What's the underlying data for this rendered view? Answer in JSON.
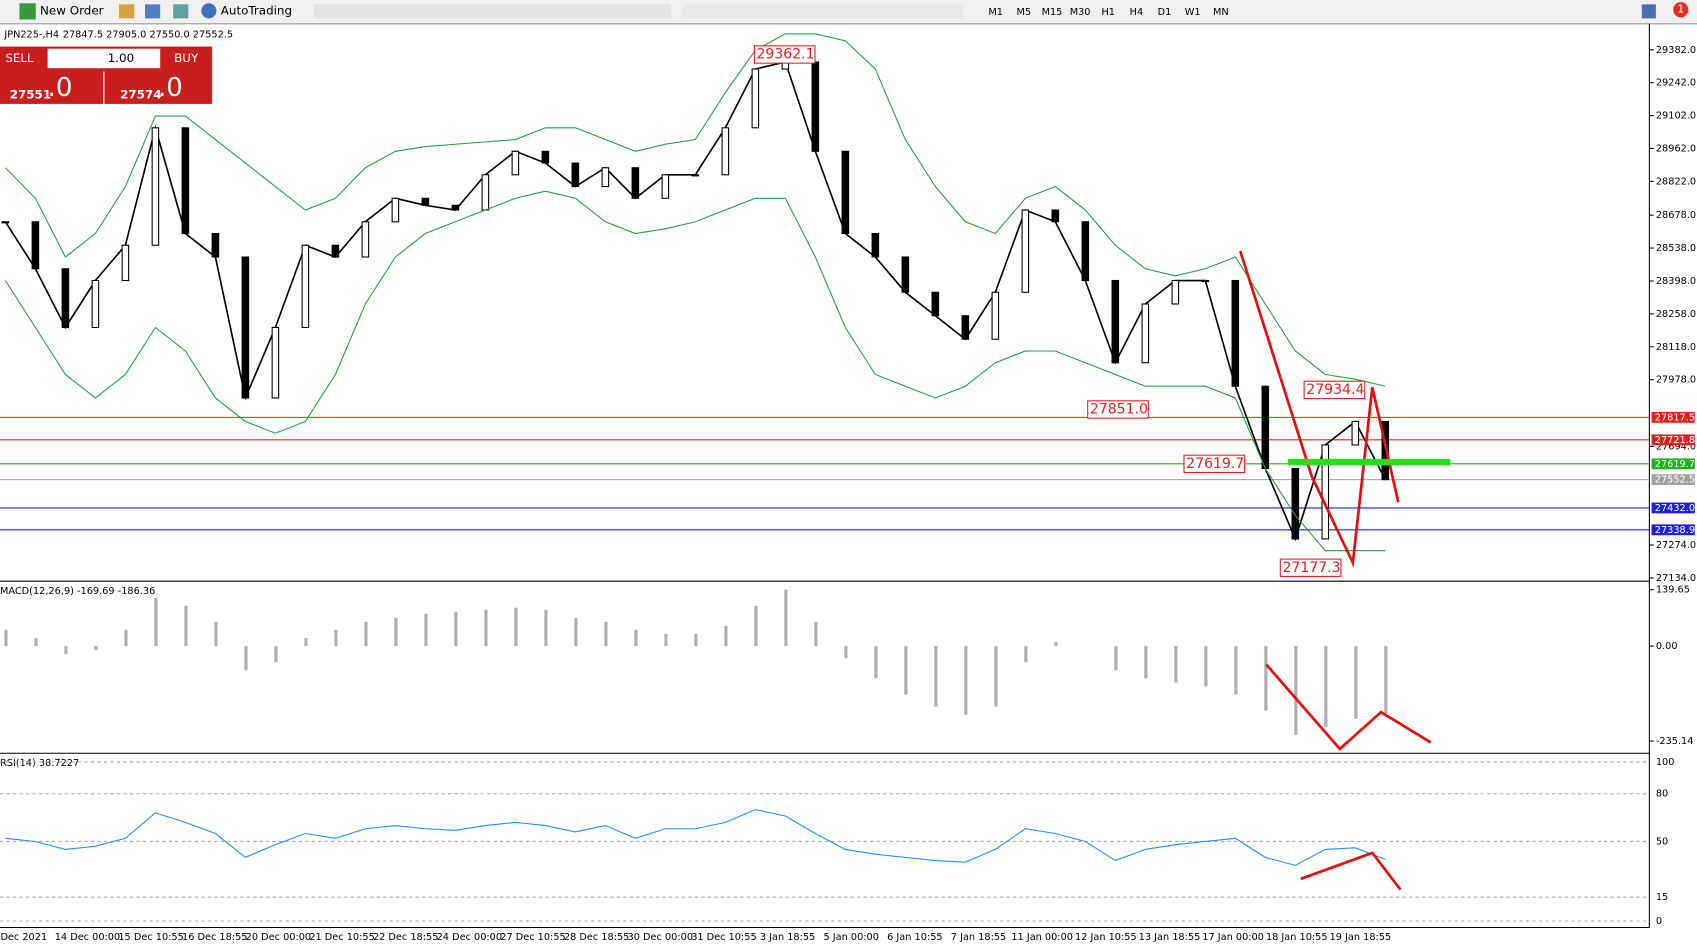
{
  "toolbar": {
    "new_order": "New Order",
    "autotrading": "AutoTrading",
    "timeframes": [
      "M1",
      "M5",
      "M15",
      "M30",
      "H1",
      "H4",
      "D1",
      "W1",
      "MN"
    ],
    "notifications": "1"
  },
  "trade_panel": {
    "sell": "SELL",
    "buy": "BUY",
    "lots": "1.00",
    "bid_main": "27551",
    "bid_small": ".0",
    "ask_main": "27574",
    "ask_small": ".0"
  },
  "chart_data": {
    "type": "candlestick-line",
    "title": "JPN225-,H4",
    "ohlc_header": "27847.5 27905.0 27550.0 27552.5",
    "ylim": [
      27134,
      29382
    ],
    "yticks": [
      {
        "value": 29382,
        "label": "29382.0"
      },
      {
        "value": 29242,
        "label": "29242.0"
      },
      {
        "value": 29102,
        "label": "29102.0"
      },
      {
        "value": 28962,
        "label": "28962.0"
      },
      {
        "value": 28822,
        "label": "28822.0"
      },
      {
        "value": 28678,
        "label": "28678.0"
      },
      {
        "value": 28538,
        "label": "28538.0"
      },
      {
        "value": 28398,
        "label": "28398.0"
      },
      {
        "value": 28258,
        "label": "28258.0"
      },
      {
        "value": 28118,
        "label": "28118.0"
      },
      {
        "value": 27978,
        "label": "27978.0"
      },
      {
        "value": 27694,
        "label": "27694.0"
      },
      {
        "value": 27274,
        "label": "27274.0"
      },
      {
        "value": 27134,
        "label": "27134.0"
      }
    ],
    "levels": [
      {
        "value": 27817.5,
        "color": "#e02020"
      },
      {
        "value": 27721.8,
        "color": "#e02020"
      },
      {
        "value": 27619.7,
        "color": "#20b020"
      },
      {
        "value": 27552.5,
        "color": "#a0a0a0"
      },
      {
        "value": 27432,
        "label": "27432.0",
        "color": "#2020e0"
      },
      {
        "value": 27338.9,
        "color": "#2020e0"
      }
    ],
    "annotations": [
      29362.1,
      27934.4,
      {
        "value": 27851,
        "label": "27851.0"
      },
      27619.7,
      27177.3
    ],
    "x_labels": [
      "Dec 2021",
      "14 Dec 00:00",
      "15 Dec 10:55",
      "16 Dec 18:55",
      "20 Dec 00:00",
      "21 Dec 10:55",
      "22 Dec 18:55",
      "24 Dec 00:00",
      "27 Dec 10:55",
      "28 Dec 18:55",
      "30 Dec 00:00",
      "31 Dec 10:55",
      "3 Jan 18:55",
      "5 Jan 00:00",
      "6 Jan 10:55",
      "7 Jan 18:55",
      "11 Jan 00:00",
      "12 Jan 10:55",
      "13 Jan 18:55",
      "17 Jan 00:00",
      "18 Jan 10:55",
      "19 Jan 18:55"
    ],
    "series": [
      {
        "name": "Close",
        "color": "#000000",
        "values": [
          28650,
          28450,
          28200,
          28400,
          28550,
          29050,
          28600,
          28500,
          27900,
          28200,
          28550,
          28500,
          28650,
          28750,
          28720,
          28700,
          28850,
          28950,
          28900,
          28800,
          28880,
          28750,
          28850,
          28850,
          29050,
          29300,
          29330,
          28950,
          28600,
          28500,
          28350,
          28250,
          28150,
          28350,
          28700,
          28650,
          28400,
          28050,
          28300,
          28400,
          28400,
          27950,
          27600,
          27300,
          27700,
          27800,
          27552.5
        ]
      },
      {
        "name": "Upper band",
        "color": "#20a040",
        "values": [
          28880,
          28750,
          28500,
          28600,
          28800,
          29100,
          29100,
          29000,
          28900,
          28800,
          28700,
          28750,
          28880,
          28950,
          28970,
          28980,
          28990,
          29000,
          29050,
          29050,
          29000,
          28950,
          28980,
          29000,
          29200,
          29380,
          29450,
          29450,
          29420,
          29300,
          29000,
          28800,
          28650,
          28600,
          28750,
          28800,
          28700,
          28550,
          28450,
          28420,
          28450,
          28500,
          28300,
          28100,
          28000,
          27980,
          27950
        ]
      },
      {
        "name": "Lower band",
        "color": "#20a040",
        "values": [
          28400,
          28200,
          28000,
          27900,
          28000,
          28200,
          28100,
          27900,
          27800,
          27750,
          27800,
          28000,
          28300,
          28500,
          28600,
          28650,
          28700,
          28750,
          28780,
          28750,
          28650,
          28600,
          28620,
          28650,
          28700,
          28750,
          28750,
          28500,
          28200,
          28000,
          27950,
          27900,
          27950,
          28050,
          28100,
          28100,
          28050,
          28000,
          27950,
          27950,
          27950,
          27900,
          27600,
          27400,
          27250,
          27250,
          27250
        ]
      }
    ]
  },
  "macd": {
    "type": "histogram",
    "title": "MACD(12,26,9) -169.69 -186.36",
    "ylim": [
      -260,
      150
    ],
    "yticks": [
      139.65,
      {
        "value": 0,
        "label": "0.00"
      },
      -235.14
    ],
    "values": [
      40,
      20,
      -20,
      -10,
      40,
      120,
      100,
      60,
      -60,
      -40,
      20,
      40,
      60,
      70,
      80,
      85,
      90,
      95,
      90,
      70,
      60,
      40,
      30,
      30,
      50,
      100,
      140,
      60,
      -30,
      -80,
      -120,
      -150,
      -170,
      -150,
      -40,
      10,
      0,
      -60,
      -80,
      -90,
      -100,
      -120,
      -160,
      -220,
      -200,
      -180,
      -169.69
    ]
  },
  "rsi": {
    "type": "line",
    "title": "RSI(14) 38.7227",
    "color": "#1e90ff",
    "ylim": [
      0,
      100
    ],
    "yticks": [
      100,
      80,
      50,
      15,
      0
    ],
    "values": [
      52,
      50,
      45,
      47,
      52,
      68,
      62,
      55,
      40,
      48,
      55,
      52,
      58,
      60,
      58,
      57,
      60,
      62,
      60,
      56,
      60,
      52,
      58,
      58,
      62,
      70,
      66,
      55,
      45,
      42,
      40,
      38,
      37,
      45,
      58,
      55,
      50,
      38,
      45,
      48,
      50,
      52,
      40,
      35,
      45,
      46,
      38.7227
    ]
  }
}
